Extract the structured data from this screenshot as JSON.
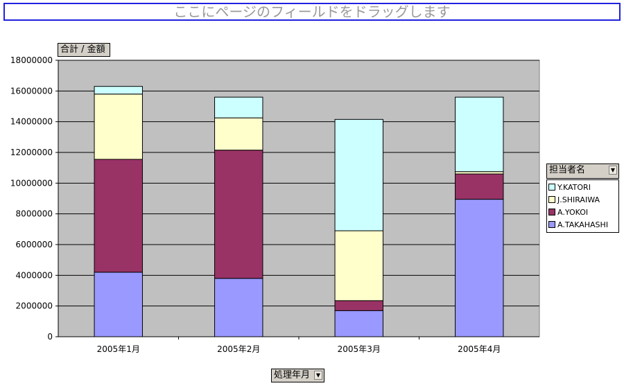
{
  "page_field_drop": {
    "label": "ここにページのフィールドをドラッグします"
  },
  "data_field": {
    "label": "合計 / 金額"
  },
  "series_field": {
    "label": "担当者名"
  },
  "category_field": {
    "label": "処理年月"
  },
  "chart_data": {
    "type": "bar",
    "stacked": true,
    "categories": [
      "2005年1月",
      "2005年2月",
      "2005年3月",
      "2005年4月"
    ],
    "series": [
      {
        "name": "A.TAKAHASHI",
        "color": "#9999ff",
        "values": [
          4200000,
          3800000,
          1700000,
          8950000
        ]
      },
      {
        "name": "A.YOKOI",
        "color": "#993366",
        "values": [
          7350000,
          8350000,
          650000,
          1650000
        ]
      },
      {
        "name": "J.SHIRAIWA",
        "color": "#ffffcc",
        "values": [
          4250000,
          2100000,
          4550000,
          150000
        ]
      },
      {
        "name": "Y.KATORI",
        "color": "#ccffff",
        "values": [
          500000,
          1350000,
          7250000,
          4850000
        ]
      }
    ],
    "ylim": [
      0,
      18000000
    ],
    "yticks": [
      0,
      2000000,
      4000000,
      6000000,
      8000000,
      10000000,
      12000000,
      14000000,
      16000000,
      18000000
    ],
    "grid": true,
    "plot_background": "#c0c0c0",
    "legend_position": "right"
  }
}
